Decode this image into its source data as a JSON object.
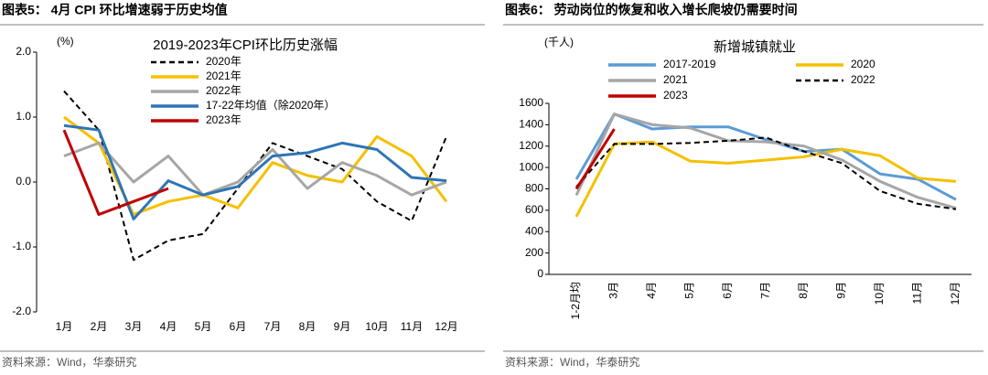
{
  "chart_data": [
    {
      "type": "line",
      "figure_title": "图表5：  4月 CPI 环比增速弱于历史均值",
      "title": "2019-2023年CPI环比历史涨幅",
      "unit": "(%)",
      "source": "资料来源：Wind，华泰研究",
      "categories": [
        "1月",
        "2月",
        "3月",
        "4月",
        "5月",
        "6月",
        "7月",
        "8月",
        "9月",
        "10月",
        "11月",
        "12月"
      ],
      "ylim": [
        -2,
        2
      ],
      "yticks": [
        {
          "value": 2,
          "label": "2.0"
        },
        {
          "value": 1,
          "label": "1.0"
        },
        {
          "value": 0,
          "label": "0.0"
        },
        {
          "value": -1,
          "label": "-1.0"
        },
        {
          "value": -2,
          "label": "-2.0"
        }
      ],
      "series": [
        {
          "name": "2020年",
          "color": "#000000",
          "dash": true,
          "values": [
            1.4,
            0.8,
            -1.2,
            -0.9,
            -0.8,
            -0.1,
            0.6,
            0.4,
            0.2,
            -0.3,
            -0.6,
            0.7
          ]
        },
        {
          "name": "2021年",
          "color": "#f5c000",
          "values": [
            1.0,
            0.6,
            -0.5,
            -0.3,
            -0.2,
            -0.4,
            0.3,
            0.1,
            0.0,
            0.7,
            0.4,
            -0.3
          ]
        },
        {
          "name": "2022年",
          "color": "#a6a6a6",
          "values": [
            0.4,
            0.6,
            0.0,
            0.4,
            -0.2,
            0.0,
            0.5,
            -0.1,
            0.3,
            0.1,
            -0.2,
            0.0
          ]
        },
        {
          "name": "17-22年均值（除2020年）",
          "color": "#2e75b6",
          "values": [
            0.87,
            0.8,
            -0.57,
            0.02,
            -0.2,
            -0.07,
            0.4,
            0.45,
            0.6,
            0.5,
            0.07,
            0.02
          ]
        },
        {
          "name": "2023年",
          "color": "#c00000",
          "values": [
            0.8,
            -0.5,
            -0.3,
            -0.1,
            null,
            null,
            null,
            null,
            null,
            null,
            null,
            null
          ]
        }
      ]
    },
    {
      "type": "line",
      "figure_title": "图表6：  劳动岗位的恢复和收入增长爬坡仍需要时间",
      "title": "新增城镇就业",
      "unit": "(千人)",
      "source": "资料来源：Wind，华泰研究",
      "categories": [
        "1-2月均",
        "3月",
        "4月",
        "5月",
        "6月",
        "7月",
        "8月",
        "9月",
        "10月",
        "11月",
        "12月"
      ],
      "ylim": [
        0,
        1600
      ],
      "yticks": [
        0,
        200,
        400,
        600,
        800,
        1000,
        1200,
        1400,
        1600
      ],
      "series": [
        {
          "name": "2017-2019",
          "color": "#5b9bd5",
          "values": [
            890,
            1500,
            1360,
            1380,
            1380,
            1260,
            1150,
            1170,
            940,
            890,
            700
          ]
        },
        {
          "name": "2020",
          "color": "#f5c000",
          "values": [
            540,
            1220,
            1240,
            1060,
            1040,
            1070,
            1100,
            1170,
            1110,
            900,
            870
          ]
        },
        {
          "name": "2021",
          "color": "#a6a6a6",
          "values": [
            740,
            1500,
            1400,
            1370,
            1250,
            1240,
            1200,
            1070,
            870,
            720,
            620
          ]
        },
        {
          "name": "2022",
          "color": "#000000",
          "dash": true,
          "values": [
            820,
            1220,
            1220,
            1230,
            1250,
            1280,
            1150,
            1040,
            780,
            660,
            610
          ]
        },
        {
          "name": "2023",
          "color": "#c00000",
          "values": [
            800,
            1360,
            null,
            null,
            null,
            null,
            null,
            null,
            null,
            null,
            null
          ]
        }
      ]
    }
  ]
}
